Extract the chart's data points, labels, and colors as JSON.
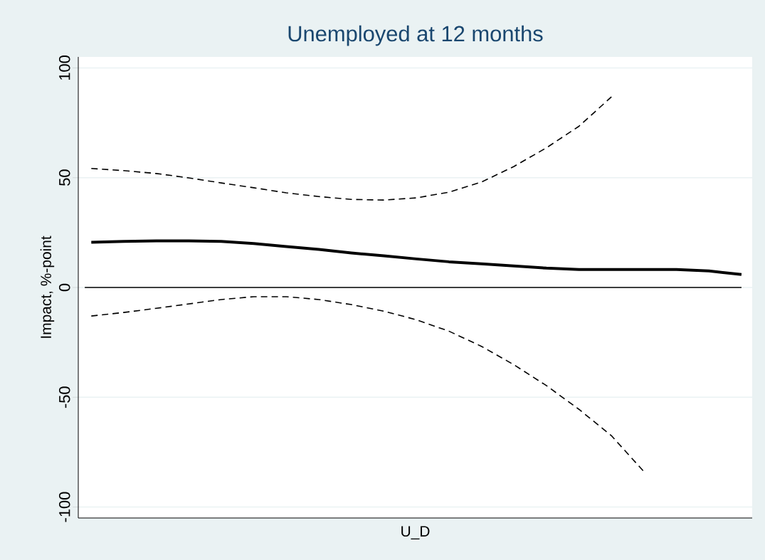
{
  "chart_data": {
    "type": "line",
    "title": "Unemployed at 12 months",
    "xlabel": "U_D",
    "ylabel": "Impact, %-point",
    "categories": [
      null,
      null,
      null,
      null,
      null,
      null,
      null,
      null,
      null,
      null,
      null,
      null,
      null,
      null,
      null,
      null,
      null,
      null,
      null,
      null,
      null
    ],
    "series": [
      {
        "color": "#000000",
        "line_style": "solid",
        "values": [
          20.6,
          21,
          21.2,
          21.2,
          21,
          20,
          18.6,
          17.3,
          15.7,
          14.4,
          13,
          11.7,
          10.8,
          9.8,
          8.8,
          8.2,
          8.2,
          8.2,
          8.2,
          7.5,
          5.9
        ]
      },
      {
        "color": "#000000",
        "line_style": "dashed",
        "values": [
          54.2,
          53.2,
          51.9,
          49.9,
          47.6,
          45.4,
          43.1,
          41.4,
          40.1,
          39.8,
          40.8,
          43.4,
          48,
          55.1,
          63.6,
          73.4,
          86.8,
          null,
          null,
          null,
          null
        ]
      },
      {
        "color": "#000000",
        "line_style": "dashed",
        "values": [
          -13,
          -11.4,
          -9.5,
          -7.5,
          -5.5,
          -4.2,
          -4.2,
          -5.5,
          -7.8,
          -10.8,
          -14.7,
          -19.9,
          -26.8,
          -35.2,
          -44.7,
          -55.5,
          -67.5,
          -83.9,
          null,
          null,
          null
        ]
      }
    ],
    "ylim": [
      -105,
      105
    ],
    "yticks": [
      -100,
      -50,
      0,
      50,
      100
    ],
    "ref_lines": [
      {
        "axis": "y",
        "value": 0,
        "color": "#000000"
      }
    ],
    "grid": "y",
    "tick_labels": "y",
    "marker": "none"
  }
}
